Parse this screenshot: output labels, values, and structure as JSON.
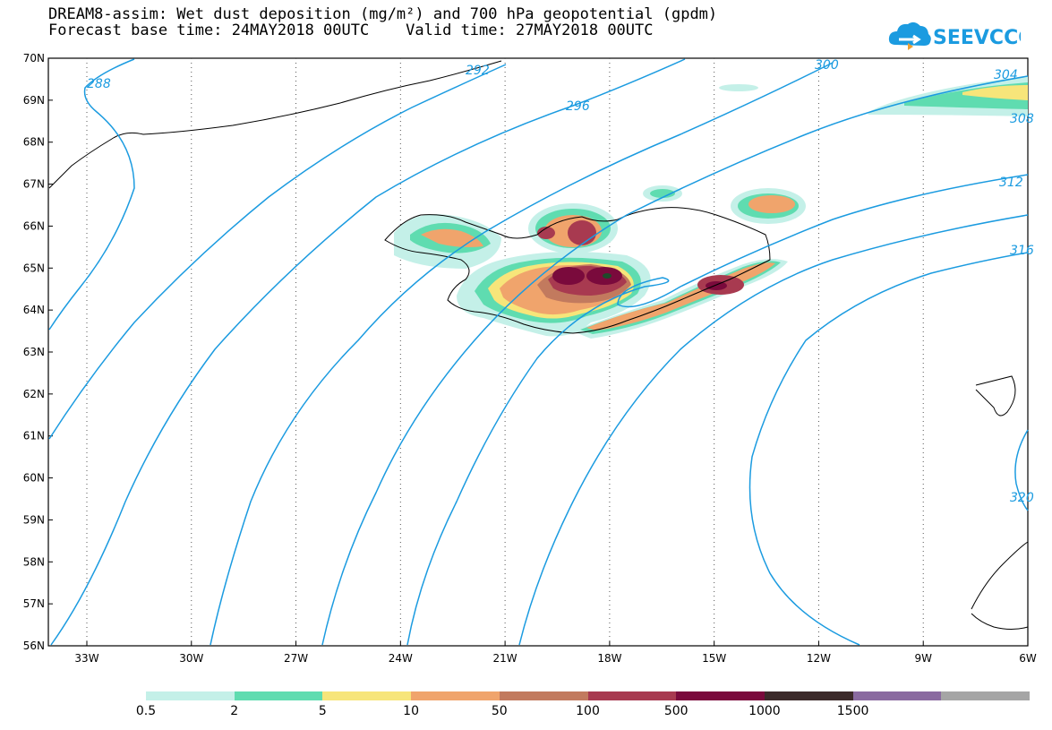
{
  "header": {
    "title_line1": "DREAM8-assim: Wet dust deposition (mg/m²) and 700 hPa geopotential (gpdm)",
    "title_line2": "Forecast base time: 24MAY2018 00UTC    Valid time: 27MAY2018 00UTC",
    "logo_text": "SEEVCCC"
  },
  "map": {
    "lat_labels": [
      "70N",
      "69N",
      "68N",
      "67N",
      "66N",
      "65N",
      "64N",
      "63N",
      "62N",
      "61N",
      "60N",
      "59N",
      "58N",
      "57N",
      "56N"
    ],
    "lon_labels": [
      "33W",
      "30W",
      "27W",
      "24W",
      "21W",
      "18W",
      "15W",
      "12W",
      "9W",
      "6W"
    ],
    "contour_labels": [
      "288",
      "292",
      "296",
      "300",
      "304",
      "308",
      "312",
      "316",
      "320"
    ]
  },
  "legend": {
    "labels": [
      "0.5",
      "2",
      "5",
      "10",
      "50",
      "100",
      "500",
      "1000",
      "1500"
    ],
    "colors": [
      "#c4f0e8",
      "#5fdcb0",
      "#f7e57a",
      "#f0a46c",
      "#c27a5e",
      "#a83a50",
      "#7a0a3c",
      "#3c2a2a",
      "#8a6aa0",
      "#a5a5a5"
    ]
  }
}
